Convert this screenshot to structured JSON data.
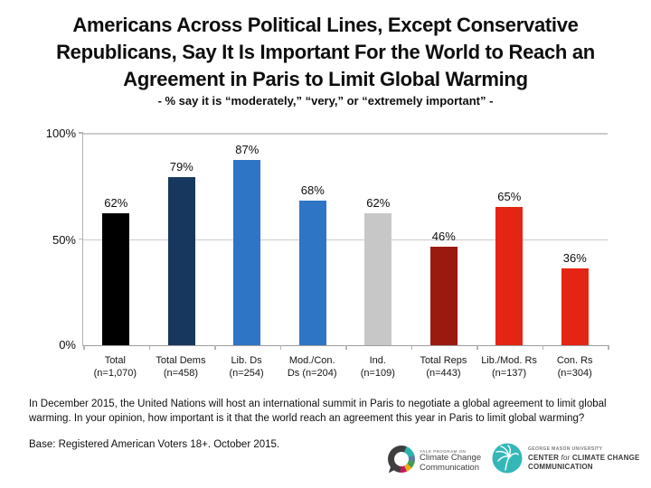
{
  "slide": {
    "title_lines": [
      "Americans Across Political Lines, Except Conservative",
      "Republicans, Say It Is Important For the World to Reach an",
      "Agreement in Paris to Limit Global Warming"
    ],
    "subtitle": "- % say it is “moderately,” “very,” or “extremely important” -"
  },
  "chart_data": {
    "type": "bar",
    "title": "Americans Across Political Lines, Except Conservative Republicans, Say It Is Important For the World to Reach an Agreement in Paris to Limit Global Warming",
    "subtitle": "- % say it is “moderately,” “very,” or “extremely important” -",
    "categories": [
      "Total (n=1,070)",
      "Total Dems (n=458)",
      "Lib. Ds (n=254)",
      "Mod./Con. Ds (n=204)",
      "Ind. (n=109)",
      "Total Reps (n=443)",
      "Lib./Mod. Rs (n=137)",
      "Con. Rs (n=304)"
    ],
    "category_lines": [
      [
        "Total",
        "(n=1,070)"
      ],
      [
        "Total Dems",
        "(n=458)"
      ],
      [
        "Lib. Ds",
        "(n=254)"
      ],
      [
        "Mod./Con.",
        "Ds (n=204)"
      ],
      [
        "Ind.",
        "(n=109)"
      ],
      [
        "Total Reps",
        "(n=443)"
      ],
      [
        "Lib./Mod. Rs",
        "(n=137)"
      ],
      [
        "Con. Rs",
        "(n=304)"
      ]
    ],
    "values": [
      62,
      79,
      87,
      68,
      62,
      46,
      65,
      36
    ],
    "value_labels": [
      "62%",
      "79%",
      "87%",
      "68%",
      "62%",
      "46%",
      "65%",
      "36%"
    ],
    "colors": [
      "#000000",
      "#17375e",
      "#2e75c6",
      "#2e75c6",
      "#c7c7c7",
      "#9a1a0f",
      "#e42513",
      "#e42513"
    ],
    "xlabel": "",
    "ylabel": "",
    "ylim": [
      0,
      100
    ],
    "yticks": [
      "100%",
      "50%",
      "0%"
    ],
    "grid": true,
    "legend": false
  },
  "footer": {
    "question": "In December 2015, the United Nations will host an international summit in Paris to negotiate a global agreement to limit global warming. In your opinion, how important is it that the world reach an agreement this year in Paris to limit global warming?",
    "base": "Base: Registered American Voters 18+. October 2015."
  },
  "logos": {
    "yale": {
      "line1": "YALE PROGRAM ON",
      "line2": "Climate Change",
      "line3": "Communication"
    },
    "gmu": {
      "line1": "GEORGE MASON UNIVERSITY",
      "line2_part1": "CENTER ",
      "line2_part2": "for",
      "line2_part3": " CLIMATE CHANGE",
      "line3": "COMMUNICATION",
      "circle_color": "#35b7b7"
    }
  }
}
